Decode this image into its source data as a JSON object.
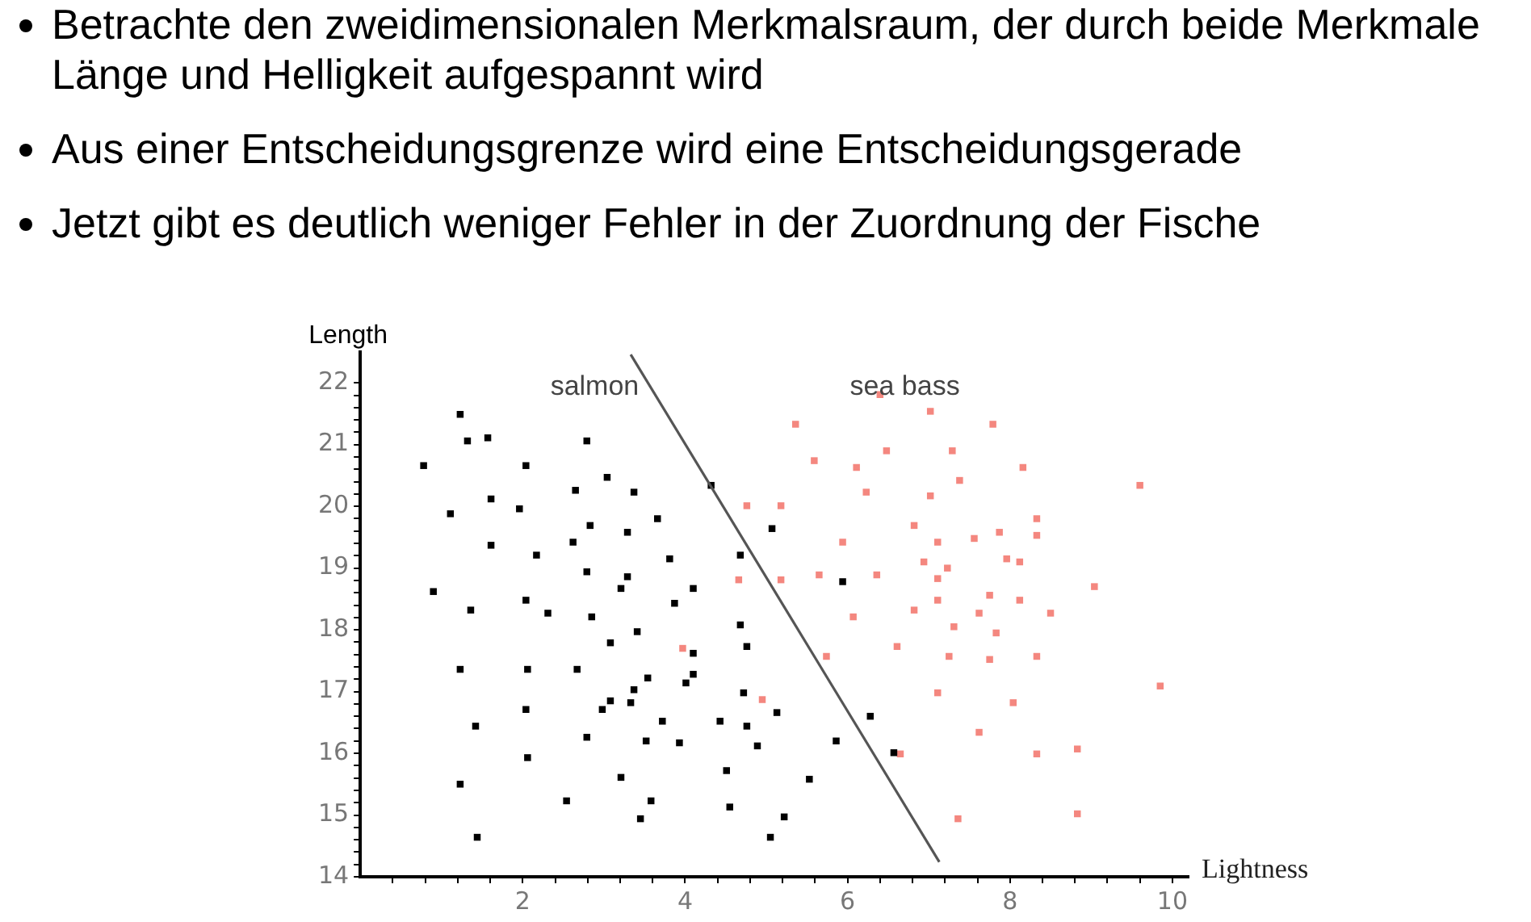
{
  "chart_data": {
    "type": "scatter",
    "annotations": [
      "Betrachte den zweidimensionalen Merkmalsraum, der durch beide Merkmale Länge und Helligkeit aufgespannt wird",
      "Aus einer Entscheidungsgrenze wird eine Entscheidungsgerade",
      "Jetzt gibt es deutlich weniger Fehler in der Zuordnung der Fische"
    ],
    "xlabel": "Lightness",
    "ylabel": "Length",
    "xlim": [
      0,
      10.2
    ],
    "ylim": [
      14,
      22.5
    ],
    "xticks": [
      {
        "value": 0.4,
        "label": null
      },
      {
        "value": 0.8,
        "label": null
      },
      {
        "value": 1.2,
        "label": null
      },
      {
        "value": 1.6,
        "label": null
      },
      2,
      {
        "value": 2.4,
        "label": null
      },
      {
        "value": 2.8,
        "label": null
      },
      {
        "value": 3.2,
        "label": null
      },
      {
        "value": 3.6,
        "label": null
      },
      4,
      {
        "value": 4.4,
        "label": null
      },
      {
        "value": 4.8,
        "label": null
      },
      {
        "value": 5.2,
        "label": null
      },
      {
        "value": 5.6,
        "label": null
      },
      6,
      {
        "value": 6.4,
        "label": null
      },
      {
        "value": 6.8,
        "label": null
      },
      {
        "value": 7.2,
        "label": null
      },
      {
        "value": 7.6,
        "label": null
      },
      8,
      {
        "value": 8.4,
        "label": null
      },
      {
        "value": 8.8,
        "label": null
      },
      {
        "value": 9.2,
        "label": null
      },
      {
        "value": 9.6,
        "label": null
      },
      10
    ],
    "yticks": [
      14,
      {
        "value": 14.2,
        "label": null
      },
      {
        "value": 14.4,
        "label": null
      },
      {
        "value": 14.6,
        "label": null
      },
      {
        "value": 14.8,
        "label": null
      },
      15,
      {
        "value": 15.2,
        "label": null
      },
      {
        "value": 15.4,
        "label": null
      },
      {
        "value": 15.6,
        "label": null
      },
      {
        "value": 15.8,
        "label": null
      },
      16,
      {
        "value": 16.2,
        "label": null
      },
      {
        "value": 16.4,
        "label": null
      },
      {
        "value": 16.6,
        "label": null
      },
      {
        "value": 16.8,
        "label": null
      },
      17,
      {
        "value": 17.2,
        "label": null
      },
      {
        "value": 17.4,
        "label": null
      },
      {
        "value": 17.6,
        "label": null
      },
      {
        "value": 17.8,
        "label": null
      },
      18,
      {
        "value": 18.2,
        "label": null
      },
      {
        "value": 18.4,
        "label": null
      },
      {
        "value": 18.6,
        "label": null
      },
      {
        "value": 18.8,
        "label": null
      },
      19,
      {
        "value": 19.2,
        "label": null
      },
      {
        "value": 19.4,
        "label": null
      },
      {
        "value": 19.6,
        "label": null
      },
      {
        "value": 19.8,
        "label": null
      },
      20,
      {
        "value": 20.2,
        "label": null
      },
      {
        "value": 20.4,
        "label": null
      },
      {
        "value": 20.6,
        "label": null
      },
      {
        "value": 20.8,
        "label": null
      },
      21,
      {
        "value": 21.2,
        "label": null
      },
      {
        "value": 21.4,
        "label": null
      },
      {
        "value": 21.6,
        "label": null
      },
      {
        "value": 21.8,
        "label": null
      },
      22
    ],
    "marker": "square",
    "grid": false,
    "legend": false,
    "series": [
      {
        "name": "salmon",
        "color": "#000000",
        "x": [
          1.23,
          1.32,
          1.57,
          2.79,
          0.78,
          2.04,
          3.04,
          2.65,
          3.37,
          4.32,
          1.11,
          1.61,
          1.96,
          2.83,
          3.29,
          3.66,
          5.07,
          1.61,
          2.17,
          2.62,
          3.81,
          4.68,
          2.79,
          3.29,
          3.21,
          4.1,
          5.94,
          0.9,
          1.36,
          2.04,
          2.31,
          2.85,
          3.08,
          3.41,
          3.87,
          4.68,
          4.76,
          4.1,
          1.23,
          2.06,
          2.67,
          3.54,
          4.1,
          4.01,
          3.37,
          3.08,
          2.98,
          3.33,
          2.04,
          4.72,
          5.13,
          1.42,
          3.72,
          4.43,
          4.76,
          2.79,
          3.52,
          3.93,
          4.89,
          2.06,
          3.21,
          4.51,
          1.23,
          2.54,
          3.58,
          4.55,
          3.45,
          5.22,
          1.44,
          5.05,
          5.53,
          5.86,
          6.28,
          6.57
        ],
        "values": [
          21.49,
          21.06,
          21.11,
          21.06,
          20.66,
          20.66,
          20.47,
          20.26,
          20.23,
          20.34,
          19.88,
          20.12,
          19.96,
          19.69,
          19.58,
          19.8,
          19.64,
          19.37,
          19.21,
          19.42,
          19.15,
          19.21,
          18.94,
          18.86,
          18.67,
          18.67,
          18.78,
          18.62,
          18.32,
          18.48,
          18.27,
          18.21,
          17.79,
          17.97,
          18.43,
          18.08,
          17.73,
          17.62,
          17.36,
          17.36,
          17.36,
          17.22,
          17.28,
          17.14,
          17.03,
          16.85,
          16.71,
          16.82,
          16.71,
          16.98,
          16.66,
          16.44,
          16.52,
          16.52,
          16.44,
          16.26,
          16.2,
          16.17,
          16.12,
          15.93,
          15.61,
          15.72,
          15.5,
          15.23,
          15.23,
          15.13,
          14.94,
          14.97,
          14.64,
          14.64,
          15.58,
          16.2,
          16.6,
          16.01
        ]
      },
      {
        "name": "sea bass",
        "color": "#f4877f",
        "x": [
          6.4,
          7.02,
          5.36,
          7.79,
          6.48,
          7.29,
          5.59,
          6.11,
          8.16,
          7.38,
          6.23,
          7.02,
          9.6,
          4.76,
          5.18,
          8.33,
          6.82,
          7.87,
          8.33,
          7.11,
          7.56,
          5.94,
          4.66,
          5.18,
          5.65,
          6.36,
          6.94,
          7.23,
          7.96,
          8.12,
          7.11,
          9.04,
          7.75,
          7.11,
          8.12,
          6.07,
          6.82,
          7.62,
          8.5,
          7.31,
          7.83,
          6.61,
          5.74,
          7.25,
          7.75,
          8.33,
          9.85,
          7.11,
          8.04,
          4.95,
          7.62,
          8.33,
          8.83,
          6.65,
          7.36,
          8.83,
          3.97
        ],
        "values": [
          21.81,
          21.54,
          21.33,
          21.33,
          20.9,
          20.9,
          20.74,
          20.63,
          20.63,
          20.42,
          20.23,
          20.17,
          20.34,
          20.01,
          20.01,
          19.8,
          19.69,
          19.58,
          19.53,
          19.42,
          19.48,
          19.42,
          18.81,
          18.81,
          18.89,
          18.89,
          19.1,
          19.0,
          19.15,
          19.1,
          18.83,
          18.7,
          18.56,
          18.48,
          18.48,
          18.21,
          18.32,
          18.27,
          18.27,
          18.05,
          17.95,
          17.73,
          17.57,
          17.57,
          17.52,
          17.57,
          17.09,
          16.98,
          16.82,
          16.87,
          16.34,
          15.99,
          16.07,
          15.99,
          14.94,
          15.02,
          17.7
        ]
      },
      {
        "type": "line",
        "marker": "none",
        "color": "#555555",
        "x": [
          3.33,
          7.13
        ],
        "values": [
          22.46,
          14.24
        ]
      }
    ]
  }
}
